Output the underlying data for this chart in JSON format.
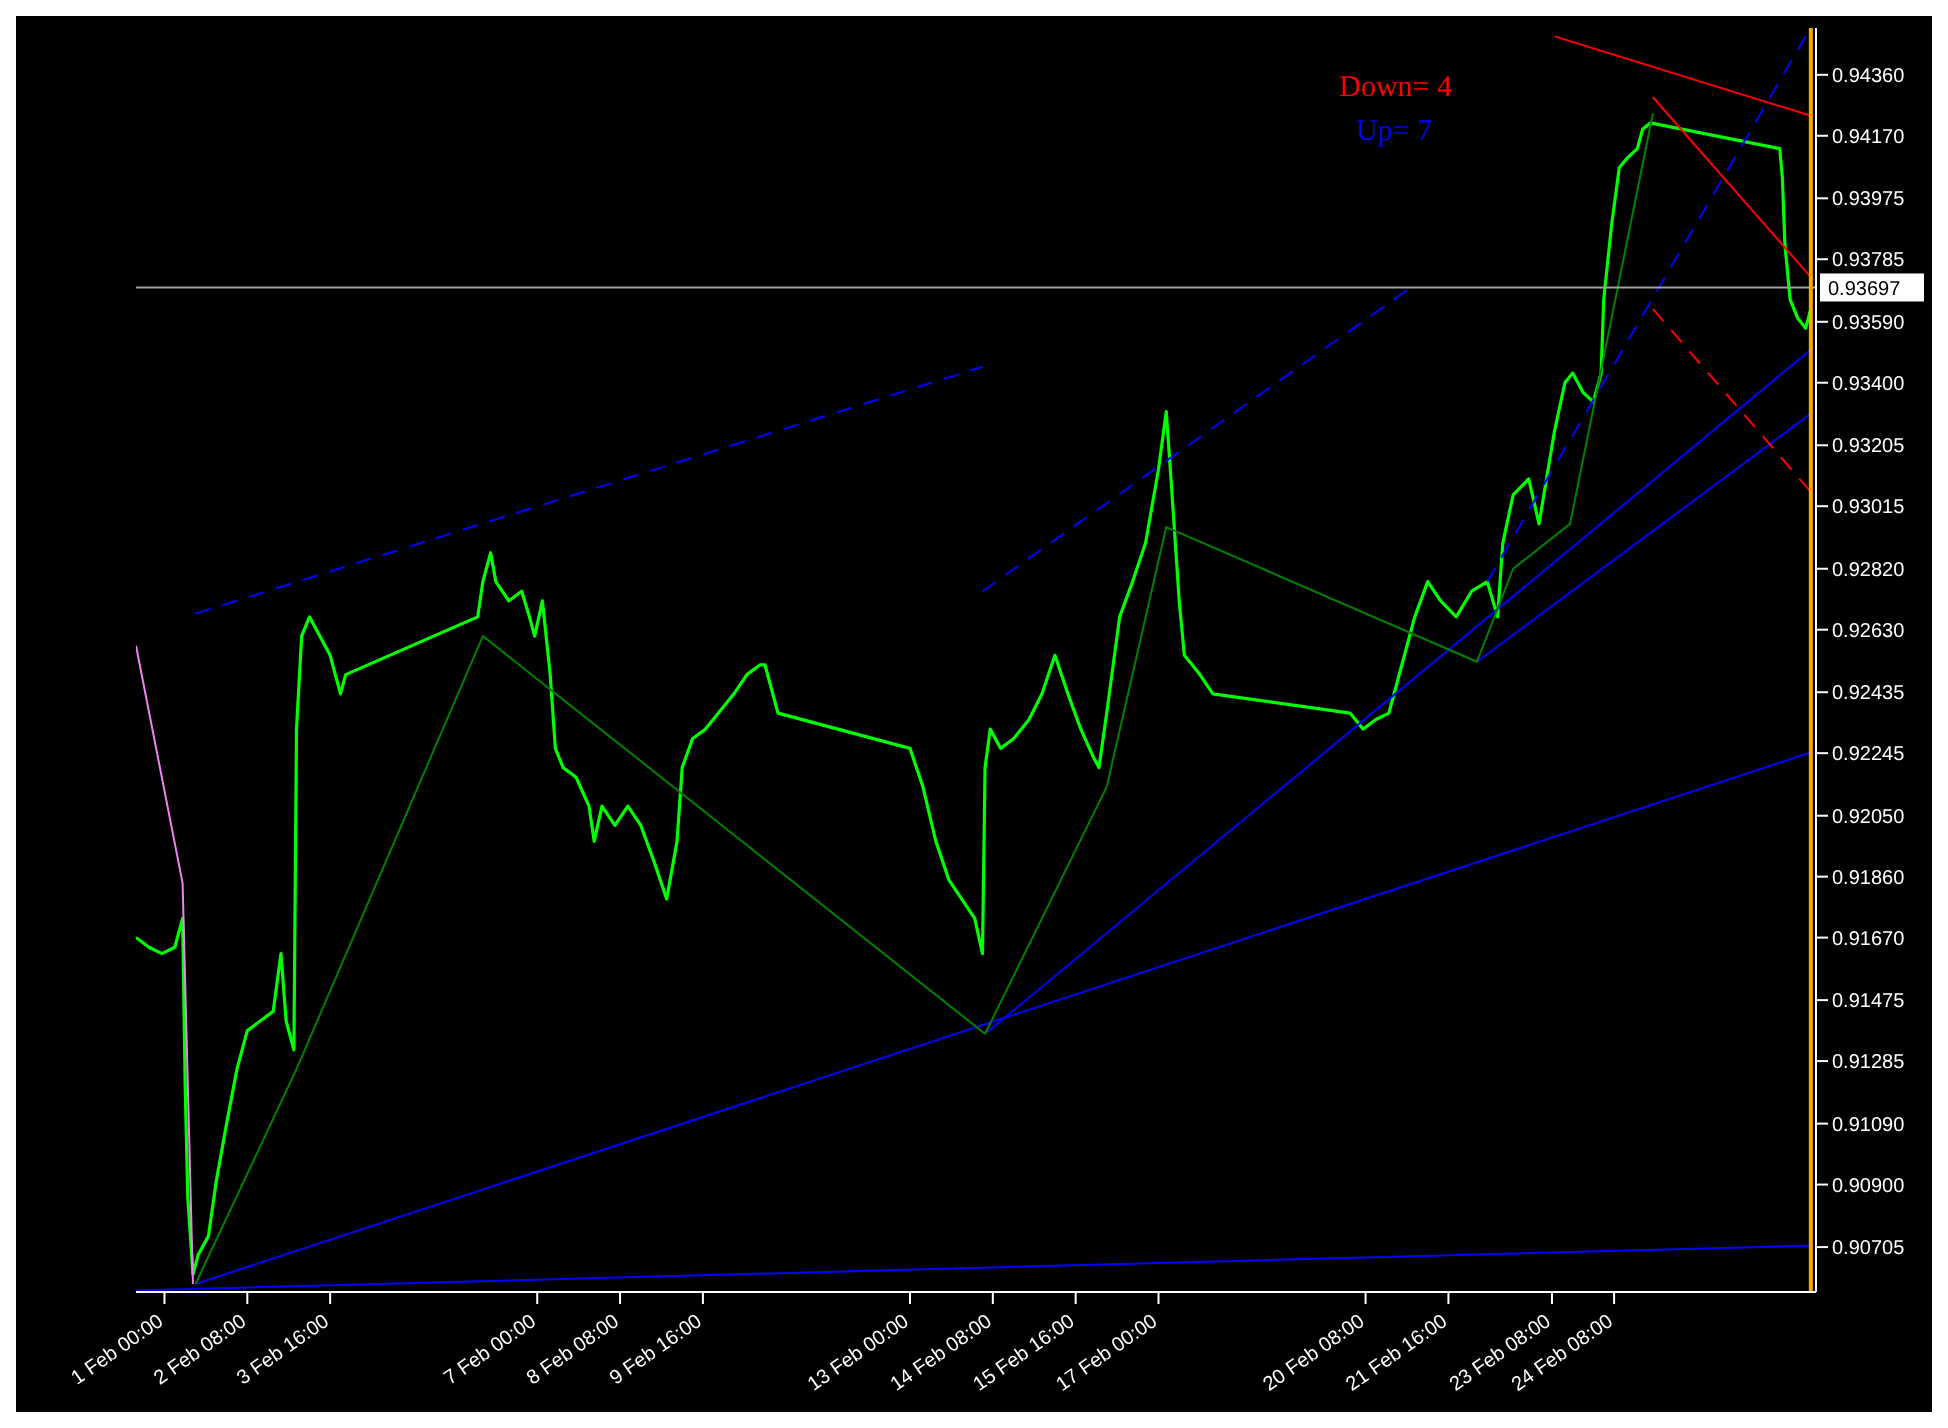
{
  "chart_data": {
    "type": "line",
    "marker": "none",
    "legend": false,
    "grid": false,
    "xlim": [
      "--01-31T13:00",
      "--02-27T14:00"
    ],
    "xticks": [
      {
        "value": "--02-01T00:00",
        "label": "1 Feb 00:00"
      },
      {
        "value": "--02-02T08:00",
        "label": "2 Feb 08:00"
      },
      {
        "value": "--02-03T16:00",
        "label": "3 Feb 16:00"
      },
      {
        "value": "--02-07T00:00",
        "label": "7 Feb 00:00"
      },
      {
        "value": "--02-08T08:00",
        "label": "8 Feb 08:00"
      },
      {
        "value": "--02-09T16:00",
        "label": "9 Feb 16:00"
      },
      {
        "value": "--02-13T00:00",
        "label": "13 Feb 00:00"
      },
      {
        "value": "--02-14T08:00",
        "label": "14 Feb 08:00"
      },
      {
        "value": "--02-15T16:00",
        "label": "15 Feb 16:00"
      },
      {
        "value": "--02-17T00:00",
        "label": "17 Feb 00:00"
      },
      {
        "value": "--02-20T08:00",
        "label": "20 Feb 08:00"
      },
      {
        "value": "--02-21T16:00",
        "label": "21 Feb 16:00"
      },
      {
        "value": "--02-23T08:00",
        "label": "23 Feb 08:00"
      },
      {
        "value": "--02-24T08:00",
        "label": "24 Feb 08:00"
      }
    ],
    "ylim": [
      0.90565,
      0.94506
    ],
    "yticks": [
      {
        "value": 0.9436,
        "label": "0.94360"
      },
      {
        "value": 0.9417,
        "label": "0.94170"
      },
      {
        "value": 0.93975,
        "label": "0.93975"
      },
      {
        "value": 0.93785,
        "label": "0.93785"
      },
      {
        "value": 0.9359,
        "label": "0.93590"
      },
      {
        "value": 0.934,
        "label": "0.93400"
      },
      {
        "value": 0.93205,
        "label": "0.93205"
      },
      {
        "value": 0.93015,
        "label": "0.93015"
      },
      {
        "value": 0.9282,
        "label": "0.92820"
      },
      {
        "value": 0.9263,
        "label": "0.92630"
      },
      {
        "value": 0.92435,
        "label": "0.92435"
      },
      {
        "value": 0.92245,
        "label": "0.92245"
      },
      {
        "value": 0.9205,
        "label": "0.92050"
      },
      {
        "value": 0.9186,
        "label": "0.91860"
      },
      {
        "value": 0.9167,
        "label": "0.91670"
      },
      {
        "value": 0.91475,
        "label": "0.91475"
      },
      {
        "value": 0.91285,
        "label": "0.91285"
      },
      {
        "value": 0.9109,
        "label": "0.91090"
      },
      {
        "value": 0.909,
        "label": "0.90900"
      },
      {
        "value": 0.90705,
        "label": "0.90705"
      }
    ],
    "ref_lines": [
      {
        "axis": "y",
        "value": 0.93697,
        "label": "0.93697",
        "color": "#a0a0a0"
      },
      {
        "axis": "x",
        "value": "--02-27T12:00",
        "color": "#ffa500"
      }
    ],
    "annotations": [
      "Down= 4",
      "Up= 7"
    ],
    "series": [
      {
        "color": "#00ff00",
        "x": [
          "--01-31T13:00",
          "--01-31T18:00",
          "--01-31T23:00",
          "--02-01T04:00",
          "--02-01T07:00",
          "--02-01T08:00",
          "--02-01T09:00",
          "--02-01T11:00",
          "--02-01T13:00",
          "--02-01T17:00",
          "--02-01T20:00",
          "--02-02T00:00",
          "--02-02T04:00",
          "--02-02T08:00",
          "--02-02T13:00",
          "--02-02T18:00",
          "--02-02T21:00",
          "--02-02T23:00",
          "--02-03T02:00",
          "--02-03T03:00",
          "--02-03T05:00",
          "--02-03T08:00",
          "--02-03T12:00",
          "--02-03T16:00",
          "--02-03T20:00",
          "--02-03T22:00",
          "--02-06T01:00",
          "--02-06T03:00",
          "--02-06T06:00",
          "--02-06T08:00",
          "--02-06T13:00",
          "--02-06T18:00",
          "--02-06T21:00",
          "--02-06T23:00",
          "--02-07T02:00",
          "--02-07T05:00",
          "--02-07T07:00",
          "--02-07T10:00",
          "--02-07T15:00",
          "--02-07T20:00",
          "--02-07T22:00",
          "--02-08T01:00",
          "--02-08T06:00",
          "--02-08T11:00",
          "--02-08T16:00",
          "--02-08T21:00",
          "--02-09T02:00",
          "--02-09T06:00",
          "--02-09T08:00",
          "--02-09T12:00",
          "--02-09T17:00",
          "--02-09T22:00",
          "--02-10T04:00",
          "--02-10T09:00",
          "--02-10T14:00",
          "--02-10T16:00",
          "--02-10T21:00",
          "--02-13T00:00",
          "--02-13T05:00",
          "--02-13T10:00",
          "--02-13T15:00",
          "--02-13T20:00",
          "--02-14T01:00",
          "--02-14T04:00",
          "--02-14T05:00",
          "--02-14T07:00",
          "--02-14T11:00",
          "--02-14T16:00",
          "--02-14T22:00",
          "--02-15T03:00",
          "--02-15T08:00",
          "--02-15T13:00",
          "--02-15T18:00",
          "--02-15T23:00",
          "--02-16T01:00",
          "--02-16T04:00",
          "--02-16T07:00",
          "--02-16T09:00",
          "--02-16T14:00",
          "--02-16T19:00",
          "--02-17T00:00",
          "--02-17T03:00",
          "--02-17T05:00",
          "--02-17T08:00",
          "--02-17T10:00",
          "--02-17T16:00",
          "--02-17T21:00",
          "--02-20T02:00",
          "--02-20T07:00",
          "--02-20T12:00",
          "--02-20T17:00",
          "--02-20T22:00",
          "--02-21T03:00",
          "--02-21T08:00",
          "--02-21T13:00",
          "--02-21T19:00",
          "--02-22T01:00",
          "--02-22T07:00",
          "--02-22T11:00",
          "--02-22T13:00",
          "--02-22T17:00",
          "--02-22T23:00",
          "--02-23T03:00",
          "--02-23T09:00",
          "--02-23T13:00",
          "--02-23T16:00",
          "--02-23T20:00",
          "--02-24T00:00",
          "--02-24T03:00",
          "--02-24T04:00",
          "--02-24T07:00",
          "--02-24T10:00",
          "--02-24T13:00",
          "--02-24T17:00",
          "--02-24T19:00",
          "--02-24T22:00",
          "--02-27T00:00",
          "--02-27T01:00",
          "--02-27T02:00",
          "--02-27T04:00",
          "--02-27T07:00",
          "--02-27T10:00",
          "--02-27T12:00"
        ],
        "values": [
          0.9167,
          0.9164,
          0.9162,
          0.9164,
          0.9173,
          0.9121,
          0.9086,
          0.9062,
          0.9068,
          0.9074,
          0.9091,
          0.9109,
          0.9126,
          0.9138,
          0.9141,
          0.9144,
          0.9162,
          0.9141,
          0.9132,
          0.9232,
          0.9261,
          0.9267,
          0.9261,
          0.9255,
          0.9243,
          0.9249,
          0.9267,
          0.9278,
          0.9287,
          0.9278,
          0.9272,
          0.9275,
          0.9267,
          0.9261,
          0.9272,
          0.9249,
          0.9226,
          0.922,
          0.9217,
          0.9208,
          0.9197,
          0.9208,
          0.9202,
          0.9208,
          0.9202,
          0.9191,
          0.9179,
          0.9197,
          0.922,
          0.9229,
          0.9232,
          0.9237,
          0.9243,
          0.9249,
          0.9252,
          0.9252,
          0.9237,
          0.9226,
          0.9214,
          0.9197,
          0.9185,
          0.9179,
          0.9173,
          0.9162,
          0.922,
          0.9232,
          0.9226,
          0.9229,
          0.9235,
          0.9243,
          0.9255,
          0.9243,
          0.9232,
          0.9223,
          0.922,
          0.9237,
          0.9255,
          0.9267,
          0.9278,
          0.929,
          0.9313,
          0.9331,
          0.9308,
          0.9272,
          0.9255,
          0.9249,
          0.9243,
          0.9237,
          0.9232,
          0.9235,
          0.9237,
          0.9252,
          0.9267,
          0.9278,
          0.9272,
          0.9267,
          0.9275,
          0.9278,
          0.9267,
          0.929,
          0.9305,
          0.931,
          0.9296,
          0.9325,
          0.934,
          0.9343,
          0.9337,
          0.9334,
          0.9343,
          0.9366,
          0.9389,
          0.9407,
          0.941,
          0.9413,
          0.9419,
          0.9421,
          0.9413,
          0.9404,
          0.9383,
          0.9366,
          0.936,
          0.9357,
          0.9363
        ]
      },
      {
        "color": "#0000ff",
        "x": [
          "--01-31T13:00",
          "--02-27T13:00"
        ],
        "values": [
          0.9057,
          0.9071
        ]
      },
      {
        "color": "#0000ff",
        "x": [
          "--02-01T12:00",
          "--02-27T13:00"
        ],
        "values": [
          0.9059,
          0.9225
        ]
      },
      {
        "color": "#0000ff",
        "x": [
          "--02-14T05:00",
          "--02-27T13:00"
        ],
        "values": [
          0.9137,
          0.9351
        ]
      },
      {
        "color": "#0000ff",
        "x": [
          "--02-22T03:00",
          "--02-27T13:00"
        ],
        "values": [
          0.9253,
          0.9331
        ]
      },
      {
        "color": "#0000ff",
        "line_style": "dashed",
        "x": [
          "--02-01T12:00",
          "--02-14T04:00"
        ],
        "values": [
          0.9268,
          0.9345
        ]
      },
      {
        "color": "#0000ff",
        "line_style": "dashed",
        "x": [
          "--02-14T04:00",
          "--02-21T02:00"
        ],
        "values": [
          0.9275,
          0.937
        ]
      },
      {
        "color": "#0000ff",
        "line_style": "dashed",
        "x": [
          "--02-22T07:00",
          "--02-27T10:00"
        ],
        "values": [
          0.9278,
          0.9448
        ]
      },
      {
        "color": "#ff0000",
        "x": [
          "--02-23T09:00",
          "--02-27T13:00"
        ],
        "values": [
          0.9448,
          0.9423
        ]
      },
      {
        "color": "#ff0000",
        "x": [
          "--02-24T23:00",
          "--02-27T13:00"
        ],
        "values": [
          0.9429,
          0.9372
        ]
      },
      {
        "color": "#ff0000",
        "line_style": "dashed",
        "x": [
          "--02-24T23:00",
          "--02-27T13:00"
        ],
        "values": [
          0.9363,
          0.9305
        ]
      },
      {
        "color": "#ee82ee",
        "x": [
          "--01-31T13:00",
          "--02-01T07:00",
          "--02-01T11:00"
        ],
        "values": [
          0.9258,
          0.9184,
          0.9059
        ]
      },
      {
        "color": "#008000",
        "x": [
          "--02-01T12:00",
          "--02-03T03:00",
          "--02-06T03:00",
          "--02-14T05:00",
          "--02-16T04:00",
          "--02-17T03:00",
          "--02-22T03:00",
          "--02-22T17:00",
          "--02-23T15:00",
          "--02-24T18:00",
          "--02-24T23:00"
        ],
        "values": [
          0.9059,
          0.9126,
          0.9261,
          0.9137,
          0.9214,
          0.9295,
          0.9253,
          0.9282,
          0.9296,
          0.9404,
          0.9424
        ]
      }
    ]
  }
}
